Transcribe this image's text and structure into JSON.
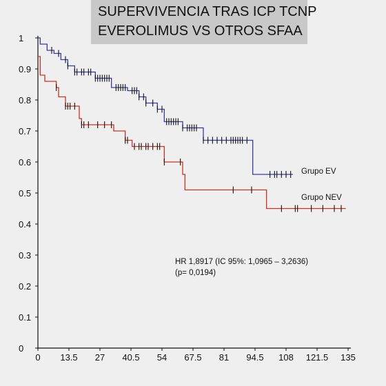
{
  "chart_data": {
    "type": "line",
    "title_lines": [
      "SUPERVIVENCIA TRAS ICP TCNP",
      "EVEROLIMUS VS OTROS SFAA"
    ],
    "xlabel": "",
    "ylabel": "",
    "xlim": [
      0,
      135
    ],
    "ylim": [
      0,
      1
    ],
    "x_ticks": [
      "0",
      "13.5",
      "27",
      "40.5",
      "54",
      "67.5",
      "81",
      "94.5",
      "108",
      "121.5",
      "135"
    ],
    "y_ticks": [
      "0",
      "0.1",
      "0.2",
      "0.3",
      "0.4",
      "0.5",
      "0.6",
      "0.7",
      "0.8",
      "0.9",
      "1"
    ],
    "grid": false,
    "series": [
      {
        "name": "Grupo EV",
        "color": "#3a3aa0",
        "steps": [
          [
            0,
            1.0
          ],
          [
            1,
            0.98
          ],
          [
            4,
            0.96
          ],
          [
            7,
            0.95
          ],
          [
            10,
            0.93
          ],
          [
            13,
            0.91
          ],
          [
            16,
            0.89
          ],
          [
            25,
            0.87
          ],
          [
            32,
            0.84
          ],
          [
            39,
            0.83
          ],
          [
            44,
            0.81
          ],
          [
            47,
            0.79
          ],
          [
            52,
            0.77
          ],
          [
            55,
            0.73
          ],
          [
            63,
            0.71
          ],
          [
            72,
            0.67
          ],
          [
            93,
            0.67
          ],
          [
            93.5,
            0.56
          ],
          [
            111,
            0.56
          ]
        ],
        "censor_x": [
          6,
          9,
          12,
          13,
          16,
          17,
          19,
          20,
          22,
          23,
          25,
          26,
          27,
          28,
          29,
          30,
          31,
          34,
          35,
          36,
          37,
          38,
          41,
          42,
          43,
          44,
          46,
          47,
          50,
          52,
          54,
          56,
          57,
          58,
          59,
          60,
          61,
          63,
          65,
          66,
          67,
          68,
          69,
          72,
          74,
          76,
          78,
          80,
          82,
          84,
          85,
          86,
          87,
          88,
          89,
          91,
          101,
          103,
          104,
          106,
          108,
          110
        ]
      },
      {
        "name": "Grupo NEV",
        "color": "#d03020",
        "steps": [
          [
            0,
            0.94
          ],
          [
            1,
            0.88
          ],
          [
            3,
            0.86
          ],
          [
            8,
            0.84
          ],
          [
            9,
            0.81
          ],
          [
            12,
            0.78
          ],
          [
            18,
            0.74
          ],
          [
            19,
            0.72
          ],
          [
            33,
            0.7
          ],
          [
            38,
            0.67
          ],
          [
            41,
            0.65
          ],
          [
            55,
            0.6
          ],
          [
            63,
            0.56
          ],
          [
            64,
            0.51
          ],
          [
            99,
            0.51
          ],
          [
            99.5,
            0.45
          ],
          [
            134,
            0.45
          ]
        ],
        "censor_x": [
          8,
          12,
          13,
          14,
          16,
          19,
          20,
          22,
          26,
          29,
          32,
          38,
          39,
          42,
          44,
          45,
          47,
          48,
          50,
          52,
          53,
          55,
          62,
          85,
          93,
          106,
          112,
          113,
          119,
          124,
          129,
          132
        ]
      }
    ],
    "annotation_lines": [
      "HR 1,8917 (IC 95%: 1,0965 – 3,2636)",
      "(p= 0,0194)"
    ]
  }
}
